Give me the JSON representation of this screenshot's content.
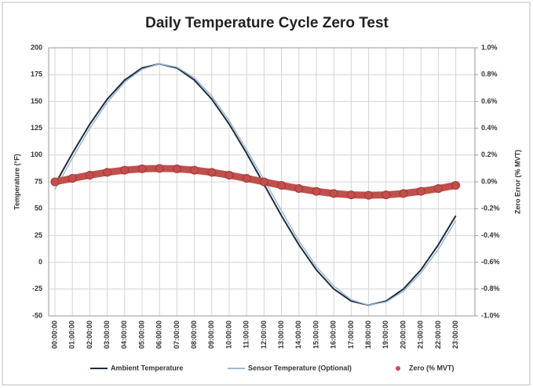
{
  "chart_data": {
    "type": "line",
    "title": "Daily Temperature Cycle Zero Test",
    "y_label": "Temperature (°F)",
    "y2_label": "Zero Error (% MVT)",
    "categories": [
      "00:00:00",
      "01:00:00",
      "02:00:00",
      "03:00:00",
      "04:00:00",
      "05:00:00",
      "06:00:00",
      "07:00:00",
      "08:00:00",
      "09:00:00",
      "10:00:00",
      "11:00:00",
      "12:00:00",
      "13:00:00",
      "14:00:00",
      "15:00:00",
      "16:00:00",
      "17:00:00",
      "18:00:00",
      "19:00:00",
      "20:00:00",
      "21:00:00",
      "22:00:00",
      "23:00:00"
    ],
    "series": [
      {
        "name": "Ambient Temperature",
        "color": "#1f2d3d",
        "values": [
          72.5,
          101.6,
          128.8,
          152.1,
          169.9,
          181.2,
          185,
          181.2,
          169.9,
          152.1,
          128.8,
          101.6,
          72.5,
          43.4,
          16.3,
          -7.1,
          -24.9,
          -36.2,
          -40,
          -36.2,
          -24.9,
          -7.1,
          16.3,
          43.4
        ]
      },
      {
        "name": "Sensor Temperature (Optional)",
        "color": "#9db7d5",
        "values": [
          68,
          97,
          125,
          149,
          168,
          180,
          185,
          182,
          172,
          155,
          132,
          105,
          77,
          48,
          20,
          -4,
          -22,
          -35,
          -40,
          -37,
          -27,
          -10,
          12,
          39
        ]
      },
      {
        "name": "Zero (% MVT)",
        "color": "#c0504d",
        "axis": "y2",
        "values": [
          0,
          0.026,
          0.05,
          0.071,
          0.087,
          0.097,
          0.1,
          0.097,
          0.087,
          0.071,
          0.05,
          0.026,
          0,
          -0.026,
          -0.05,
          -0.071,
          -0.087,
          -0.097,
          -0.1,
          -0.097,
          -0.087,
          -0.071,
          -0.05,
          -0.026
        ]
      }
    ],
    "ylim": [
      -50,
      200
    ],
    "yticks": [
      -50,
      -25,
      0,
      25,
      50,
      75,
      100,
      125,
      150,
      175,
      200
    ],
    "y2lim": [
      -1,
      1
    ],
    "y2ticks": [
      {
        "value": -1,
        "label": "-1.0%"
      },
      {
        "value": -0.8,
        "label": "-0.8%"
      },
      {
        "value": -0.6,
        "label": "-0.6%"
      },
      {
        "value": -0.4,
        "label": "-0.4%"
      },
      {
        "value": -0.2,
        "label": "-0.2%"
      },
      {
        "value": 0,
        "label": "0.0%"
      },
      {
        "value": 0.2,
        "label": "0.2%"
      },
      {
        "value": 0.4,
        "label": "0.4%"
      },
      {
        "value": 0.6,
        "label": "0.6%"
      },
      {
        "value": 0.8,
        "label": "0.8%"
      },
      {
        "value": 1,
        "label": "1.0%"
      }
    ],
    "grid": true,
    "legend": "bottom"
  }
}
